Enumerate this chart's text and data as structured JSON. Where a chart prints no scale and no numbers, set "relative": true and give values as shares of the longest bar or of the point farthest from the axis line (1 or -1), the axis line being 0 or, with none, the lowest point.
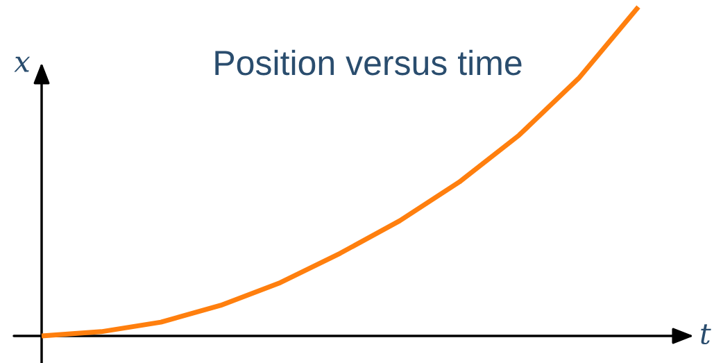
{
  "chart_data": {
    "type": "line",
    "title": "Position versus time",
    "xlabel": "t",
    "ylabel": "x",
    "relative": true,
    "categories": [
      null,
      null,
      null,
      null,
      null,
      null,
      null,
      null,
      null,
      null,
      null
    ],
    "series": [
      {
        "color": "#ff7f0e",
        "values": [
          0,
          0.013,
          0.042,
          0.093,
          0.162,
          0.251,
          0.35,
          0.468,
          0.61,
          0.783,
          1.0
        ]
      }
    ]
  }
}
